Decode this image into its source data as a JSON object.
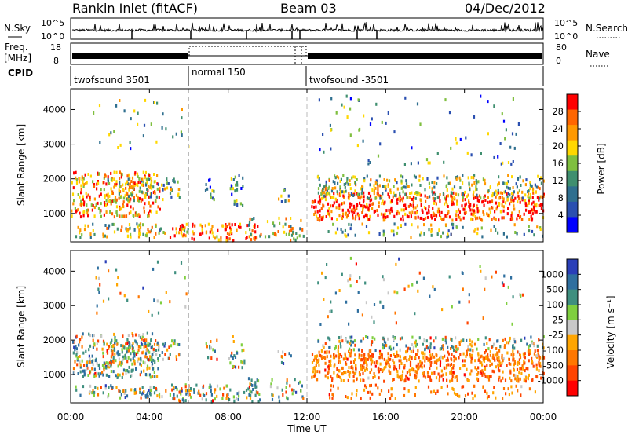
{
  "header": {
    "title_left": "Rankin Inlet (fitACF)",
    "title_center": "Beam 03",
    "title_right": "04/Dec/2012"
  },
  "params": {
    "nsky_label": "N.Sky",
    "nsearch_label": "N.Search",
    "freq_label": "Freq.",
    "freq_unit": "[MHz]",
    "nave_label": "Nave",
    "cpid_label": "CPID",
    "nsky_ticks": [
      "10^5",
      "10^0"
    ],
    "nsearch_ticks": [
      "10^5",
      "10^0"
    ],
    "freq_ticks": [
      "18",
      "8"
    ],
    "nave_ticks": [
      "80",
      "0"
    ],
    "cpid_segments": [
      {
        "label": "twofsound 3501",
        "start_hour": 0
      },
      {
        "label": "normal 150",
        "start_hour": 6
      },
      {
        "label": "twofsound -3501",
        "start_hour": 12
      }
    ]
  },
  "colors": {
    "power": [
      "#0000ff",
      "#2a4fb0",
      "#2f6f8f",
      "#3f8f6f",
      "#7fbf3f",
      "#ffd700",
      "#ff9900",
      "#ff6600",
      "#ff0000"
    ],
    "velocity": [
      "#2a3fb8",
      "#2f6f9f",
      "#3f8f7f",
      "#7fcf3f",
      "#c8c8c8",
      "#ffa500",
      "#ff7700",
      "#ff4400",
      "#ff0000"
    ]
  },
  "chart_data": [
    {
      "type": "heatmap",
      "name": "power",
      "xlabel": "",
      "ylabel": "Slant Range [km]",
      "yticks": [
        "1000",
        "2000",
        "3000",
        "4000"
      ],
      "ylim": [
        180,
        4600
      ],
      "xlim_hours": [
        0,
        24
      ],
      "colorbar_label": "Power [dB]",
      "colorbar_ticks": [
        "4",
        "8",
        "12",
        "16",
        "20",
        "24",
        "28"
      ],
      "colorbar_range": [
        0,
        32
      ]
    },
    {
      "type": "heatmap",
      "name": "velocity",
      "xlabel": "Time UT",
      "ylabel": "Slant Range [km]",
      "xticks": [
        "00:00",
        "04:00",
        "08:00",
        "12:00",
        "16:00",
        "20:00",
        "00:00"
      ],
      "yticks": [
        "1000",
        "2000",
        "3000",
        "4000"
      ],
      "ylim": [
        180,
        4600
      ],
      "xlim_hours": [
        0,
        24
      ],
      "colorbar_label": "Velocity [m s⁻¹]",
      "colorbar_ticks": [
        "1000",
        "500",
        "100",
        "25",
        "-25",
        "-100",
        "-500",
        "-1000"
      ]
    }
  ]
}
